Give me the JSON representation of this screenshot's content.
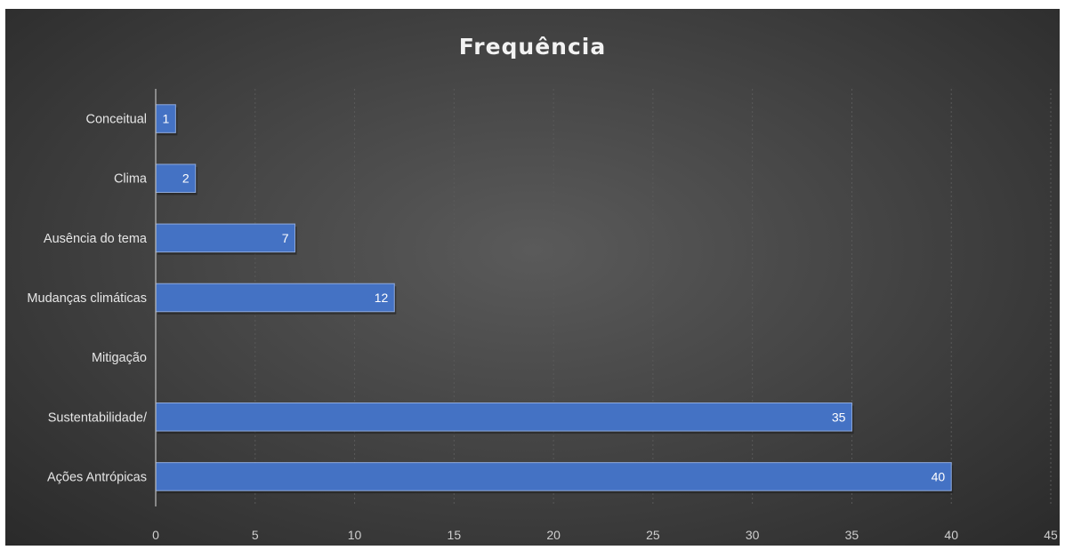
{
  "chart_data": {
    "type": "bar",
    "orientation": "horizontal",
    "title": "Frequência",
    "xlabel": "",
    "ylabel": "",
    "categories": [
      "Conceitual",
      "Clima",
      "Ausência do tema",
      "Mudanças climáticas",
      "Mitigação",
      "Sustentabilidade/",
      "Ações Antrópicas"
    ],
    "values": [
      1,
      2,
      7,
      12,
      null,
      35,
      40
    ],
    "data_labels": [
      "1",
      "2",
      "7",
      "12",
      "",
      "35",
      "40"
    ],
    "xlim": [
      0,
      45
    ],
    "xticks": [
      "0",
      "5",
      "10",
      "15",
      "20",
      "25",
      "30",
      "35",
      "40",
      "45"
    ],
    "grid": "vertical",
    "legend": "none",
    "colors": {
      "bar": "#4472c4",
      "bar_edge": "#2f5597",
      "background": "#404040",
      "text": "#e6e6e6",
      "grid": "#595959"
    }
  }
}
